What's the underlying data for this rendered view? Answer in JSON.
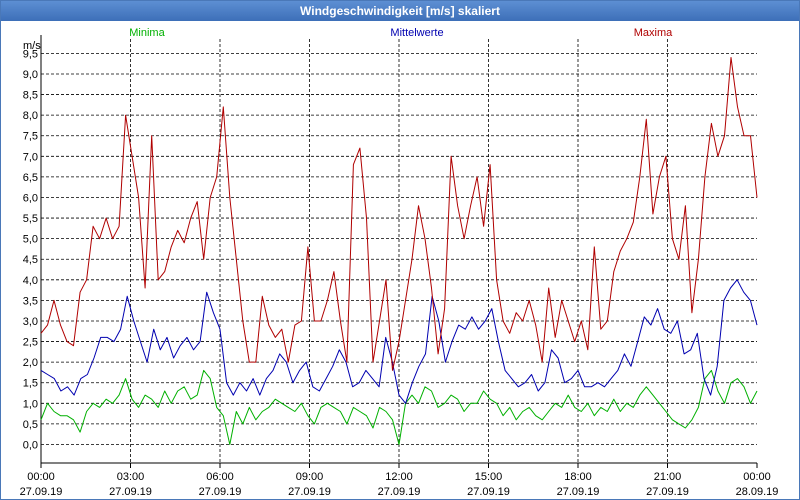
{
  "window": {
    "title": "Windgeschwindigkeit [m/s] skaliert"
  },
  "chart_data": {
    "type": "line",
    "title": "Windgeschwindigkeit [m/s] skaliert",
    "ylabel": "m/s",
    "ylim": [
      -0.45,
      9.85
    ],
    "xlim": [
      0,
      24
    ],
    "grid": true,
    "y_ticks": [
      "0,0",
      "0,5",
      "1,0",
      "1,5",
      "2,0",
      "2,5",
      "3,0",
      "3,5",
      "4,0",
      "4,5",
      "5,0",
      "5,5",
      "6,0",
      "6,5",
      "7,0",
      "7,5",
      "8,0",
      "8,5",
      "9,0",
      "9,5"
    ],
    "x_ticks": [
      {
        "time": "00:00",
        "date": "27.09.19"
      },
      {
        "time": "03:00",
        "date": "27.09.19"
      },
      {
        "time": "06:00",
        "date": "27.09.19"
      },
      {
        "time": "09:00",
        "date": "27.09.19"
      },
      {
        "time": "12:00",
        "date": "27.09.19"
      },
      {
        "time": "15:00",
        "date": "27.09.19"
      },
      {
        "time": "18:00",
        "date": "27.09.19"
      },
      {
        "time": "21:00",
        "date": "27.09.19"
      },
      {
        "time": "00:00",
        "date": "28.09.19"
      }
    ],
    "series": [
      {
        "name": "Minima",
        "color": "#00b000",
        "values": [
          0.6,
          1.0,
          0.8,
          0.7,
          0.7,
          0.6,
          0.3,
          0.8,
          1.0,
          0.9,
          1.1,
          1.0,
          1.2,
          1.6,
          1.1,
          0.9,
          1.2,
          1.1,
          0.9,
          1.3,
          1.0,
          1.3,
          1.4,
          1.1,
          1.2,
          1.8,
          1.6,
          0.9,
          0.7,
          0.0,
          0.8,
          0.5,
          0.9,
          0.6,
          0.8,
          0.9,
          1.1,
          1.0,
          0.9,
          0.8,
          1.0,
          0.7,
          0.5,
          0.9,
          1.0,
          0.9,
          0.8,
          0.5,
          0.9,
          0.8,
          0.7,
          0.4,
          0.9,
          0.8,
          0.6,
          0.0,
          1.0,
          1.2,
          1.0,
          1.4,
          1.3,
          0.9,
          1.0,
          1.2,
          1.1,
          0.8,
          1.0,
          1.0,
          1.3,
          1.1,
          1.0,
          0.7,
          0.9,
          0.6,
          0.8,
          0.9,
          0.7,
          0.6,
          0.8,
          1.0,
          0.9,
          1.2,
          0.9,
          0.8,
          1.0,
          0.7,
          0.9,
          0.8,
          1.1,
          0.8,
          1.0,
          0.9,
          1.2,
          1.4,
          1.2,
          1.0,
          0.8,
          0.6,
          0.5,
          0.4,
          0.6,
          0.9,
          1.6,
          1.8,
          1.3,
          1.0,
          1.5,
          1.6,
          1.4,
          1.0,
          1.3
        ]
      },
      {
        "name": "Mittelwerte",
        "color": "#0000b0",
        "values": [
          1.8,
          1.7,
          1.6,
          1.3,
          1.4,
          1.2,
          1.6,
          1.7,
          2.1,
          2.6,
          2.6,
          2.5,
          2.8,
          3.6,
          3.0,
          2.5,
          2.0,
          2.8,
          2.3,
          2.6,
          2.1,
          2.4,
          2.6,
          2.3,
          2.5,
          3.7,
          3.2,
          2.8,
          1.5,
          1.2,
          1.5,
          1.3,
          1.6,
          1.2,
          1.6,
          1.8,
          2.2,
          2.0,
          1.5,
          1.8,
          2.0,
          1.4,
          1.3,
          1.6,
          1.9,
          2.3,
          2.0,
          1.4,
          1.5,
          1.8,
          1.6,
          1.4,
          2.6,
          2.0,
          1.2,
          1.0,
          1.5,
          1.9,
          2.2,
          3.6,
          3.0,
          2.0,
          2.5,
          2.9,
          2.8,
          3.1,
          2.8,
          3.0,
          3.3,
          2.5,
          1.8,
          1.6,
          1.4,
          1.5,
          1.7,
          1.3,
          1.5,
          2.3,
          2.1,
          1.5,
          1.6,
          1.8,
          1.4,
          1.4,
          1.5,
          1.4,
          1.6,
          1.8,
          2.2,
          1.9,
          2.5,
          3.1,
          2.9,
          3.3,
          2.8,
          2.7,
          3.0,
          2.2,
          2.3,
          2.7,
          1.6,
          1.2,
          1.9,
          3.5,
          3.8,
          4.0,
          3.7,
          3.5,
          2.9
        ]
      },
      {
        "name": "Maxima",
        "color": "#b00000",
        "values": [
          2.7,
          2.9,
          3.5,
          2.9,
          2.5,
          2.4,
          3.7,
          4.0,
          5.3,
          5.0,
          5.5,
          5.0,
          5.3,
          8.0,
          7.0,
          6.0,
          3.8,
          7.5,
          4.0,
          4.2,
          4.8,
          5.2,
          4.9,
          5.5,
          5.9,
          4.5,
          6.0,
          6.5,
          8.2,
          6.0,
          4.5,
          3.0,
          2.0,
          2.0,
          3.6,
          2.9,
          2.6,
          2.8,
          2.0,
          2.9,
          3.0,
          4.8,
          3.0,
          3.0,
          3.5,
          4.2,
          3.0,
          2.0,
          6.8,
          7.2,
          5.5,
          2.0,
          3.0,
          4.0,
          1.8,
          2.5,
          3.5,
          4.5,
          5.8,
          5.0,
          3.8,
          2.2,
          3.3,
          7.0,
          5.8,
          5.0,
          5.8,
          6.5,
          5.3,
          6.8,
          4.0,
          3.0,
          2.7,
          3.2,
          3.0,
          3.5,
          2.9,
          2.0,
          3.8,
          2.6,
          3.5,
          3.0,
          2.5,
          3.0,
          2.3,
          4.8,
          2.8,
          3.0,
          4.2,
          4.7,
          5.0,
          5.4,
          6.5,
          7.9,
          5.6,
          6.5,
          7.0,
          5.0,
          4.5,
          5.8,
          3.2,
          4.5,
          6.5,
          7.8,
          7.0,
          7.5,
          9.4,
          8.2,
          7.5,
          7.5,
          6.0
        ]
      }
    ]
  }
}
